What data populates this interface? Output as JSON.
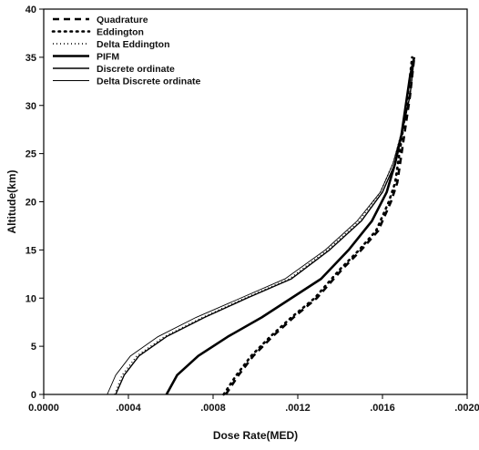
{
  "chart_data": {
    "type": "line",
    "title": "",
    "xlabel": "Dose Rate(MED)",
    "ylabel": "Altitude(km)",
    "xlim": [
      0,
      0.002
    ],
    "ylim": [
      0,
      40
    ],
    "x_ticks": [
      0,
      0.0004,
      0.0008,
      0.0012,
      0.0016,
      0.002
    ],
    "x_tick_labels": [
      "0.0000",
      ".0004",
      ".0008",
      ".0012",
      ".0016",
      ".0020"
    ],
    "y_ticks": [
      0,
      5,
      10,
      15,
      20,
      25,
      30,
      35,
      40
    ],
    "y_tick_labels": [
      "0",
      "5",
      "10",
      "15",
      "20",
      "25",
      "30",
      "35",
      "40"
    ],
    "grid": false,
    "legend_position": "top-left",
    "series": [
      {
        "name": "Quadrature",
        "style": "dashed-thick",
        "color": "#000000",
        "points": [
          [
            0.00086,
            0
          ],
          [
            0.00092,
            2
          ],
          [
            0.00099,
            4
          ],
          [
            0.00108,
            6
          ],
          [
            0.00118,
            8
          ],
          [
            0.00129,
            10
          ],
          [
            0.00141,
            13
          ],
          [
            0.0015,
            15
          ],
          [
            0.00158,
            17
          ],
          [
            0.00164,
            20
          ],
          [
            0.00167,
            22
          ],
          [
            0.00169,
            25
          ],
          [
            0.00171,
            28
          ],
          [
            0.00173,
            31
          ],
          [
            0.00174,
            33
          ],
          [
            0.00175,
            35
          ]
        ]
      },
      {
        "name": "Eddington",
        "style": "dotted",
        "color": "#000000",
        "points": [
          [
            0.00085,
            0
          ],
          [
            0.00091,
            2
          ],
          [
            0.00098,
            4
          ],
          [
            0.00107,
            6
          ],
          [
            0.00117,
            8
          ],
          [
            0.00128,
            10
          ],
          [
            0.0014,
            13
          ],
          [
            0.00149,
            15
          ],
          [
            0.00157,
            17
          ],
          [
            0.00163,
            20
          ],
          [
            0.00166,
            22
          ],
          [
            0.00168,
            25
          ],
          [
            0.0017,
            28
          ],
          [
            0.00172,
            31
          ],
          [
            0.00173,
            33
          ],
          [
            0.00174,
            35
          ]
        ]
      },
      {
        "name": "Delta Eddington",
        "style": "dotted-fine",
        "color": "#000000",
        "points": [
          [
            0.000335,
            0
          ],
          [
            0.00037,
            2
          ],
          [
            0.00044,
            4
          ],
          [
            0.00057,
            6
          ],
          [
            0.00075,
            8
          ],
          [
            0.00095,
            10
          ],
          [
            0.00116,
            12
          ],
          [
            0.00134,
            15
          ],
          [
            0.00149,
            18
          ],
          [
            0.00159,
            21
          ],
          [
            0.00165,
            24
          ],
          [
            0.0017,
            28
          ],
          [
            0.00173,
            31
          ],
          [
            0.00174,
            33
          ],
          [
            0.00175,
            35
          ]
        ]
      },
      {
        "name": "PIFM",
        "style": "solid-thick",
        "color": "#000000",
        "points": [
          [
            0.00058,
            0
          ],
          [
            0.00063,
            2
          ],
          [
            0.00073,
            4
          ],
          [
            0.00087,
            6
          ],
          [
            0.00103,
            8
          ],
          [
            0.00117,
            10
          ],
          [
            0.00131,
            12
          ],
          [
            0.00144,
            15
          ],
          [
            0.00155,
            18
          ],
          [
            0.00162,
            21
          ],
          [
            0.00166,
            24
          ],
          [
            0.00169,
            27
          ],
          [
            0.00171,
            30
          ],
          [
            0.00173,
            33
          ],
          [
            0.00175,
            35
          ]
        ]
      },
      {
        "name": "Discrete ordinate",
        "style": "solid",
        "color": "#000000",
        "points": [
          [
            0.00034,
            0
          ],
          [
            0.00038,
            2
          ],
          [
            0.00045,
            4
          ],
          [
            0.00058,
            6
          ],
          [
            0.00076,
            8
          ],
          [
            0.00096,
            10
          ],
          [
            0.00117,
            12
          ],
          [
            0.00135,
            15
          ],
          [
            0.0015,
            18
          ],
          [
            0.0016,
            21
          ],
          [
            0.00166,
            24
          ],
          [
            0.0017,
            28
          ],
          [
            0.00173,
            31
          ],
          [
            0.00174,
            33
          ],
          [
            0.00175,
            35
          ]
        ]
      },
      {
        "name": "Delta Discrete ordinate",
        "style": "solid-thin",
        "color": "#000000",
        "points": [
          [
            0.0003,
            0
          ],
          [
            0.00034,
            2
          ],
          [
            0.00041,
            4
          ],
          [
            0.00054,
            6
          ],
          [
            0.00072,
            8
          ],
          [
            0.00093,
            10
          ],
          [
            0.00114,
            12
          ],
          [
            0.00133,
            15
          ],
          [
            0.00148,
            18
          ],
          [
            0.00159,
            21
          ],
          [
            0.00165,
            24
          ],
          [
            0.0017,
            28
          ],
          [
            0.00173,
            31
          ],
          [
            0.00174,
            33
          ],
          [
            0.00175,
            35
          ]
        ]
      }
    ]
  }
}
